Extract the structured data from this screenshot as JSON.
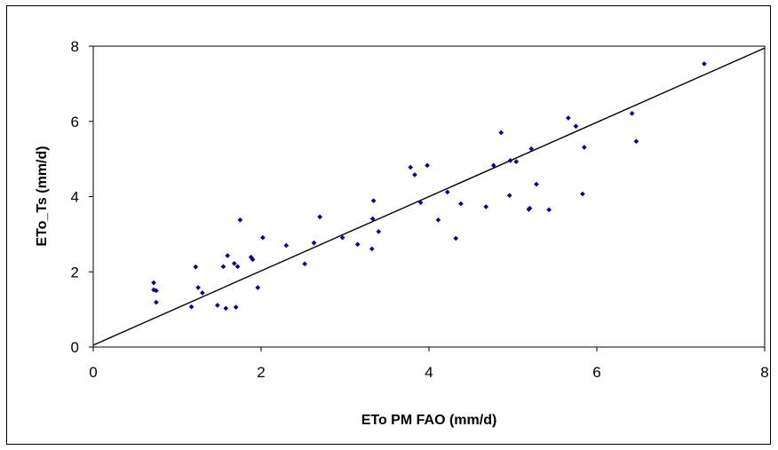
{
  "chart_data": {
    "type": "scatter",
    "title": "",
    "xlabel": "ETo PM FAO (mm/d)",
    "ylabel": "ETo_Ts (mm/d)",
    "xlim": [
      0,
      8
    ],
    "ylim": [
      0,
      8
    ],
    "x_ticks": [
      "0",
      "2",
      "4",
      "6",
      "8"
    ],
    "y_ticks": [
      "0",
      "2",
      "4",
      "6",
      "8"
    ],
    "grid": false,
    "legend": "none",
    "series": [
      {
        "marker_color": "#000080",
        "points": [
          [
            0.72,
            1.71
          ],
          [
            0.72,
            1.52
          ],
          [
            0.75,
            1.5
          ],
          [
            0.75,
            1.19
          ],
          [
            1.17,
            1.07
          ],
          [
            1.22,
            2.13
          ],
          [
            1.25,
            1.58
          ],
          [
            1.3,
            1.44
          ],
          [
            1.48,
            1.11
          ],
          [
            1.55,
            2.14
          ],
          [
            1.58,
            1.03
          ],
          [
            1.6,
            2.43
          ],
          [
            1.68,
            2.22
          ],
          [
            1.7,
            1.06
          ],
          [
            1.72,
            2.14
          ],
          [
            1.75,
            3.38
          ],
          [
            1.88,
            2.39
          ],
          [
            1.9,
            2.33
          ],
          [
            1.96,
            1.58
          ],
          [
            2.02,
            2.91
          ],
          [
            2.3,
            2.7
          ],
          [
            2.52,
            2.21
          ],
          [
            2.63,
            2.77
          ],
          [
            2.7,
            3.46
          ],
          [
            2.97,
            2.91
          ],
          [
            3.15,
            2.73
          ],
          [
            3.32,
            2.61
          ],
          [
            3.33,
            3.41
          ],
          [
            3.34,
            3.89
          ],
          [
            3.4,
            3.07
          ],
          [
            3.78,
            4.78
          ],
          [
            3.83,
            4.58
          ],
          [
            3.9,
            3.84
          ],
          [
            3.98,
            4.83
          ],
          [
            4.11,
            3.38
          ],
          [
            4.22,
            4.12
          ],
          [
            4.32,
            2.89
          ],
          [
            4.38,
            3.81
          ],
          [
            4.68,
            3.73
          ],
          [
            4.77,
            4.83
          ],
          [
            4.86,
            5.7
          ],
          [
            4.96,
            4.03
          ],
          [
            4.97,
            4.96
          ],
          [
            5.04,
            4.93
          ],
          [
            5.19,
            3.66
          ],
          [
            5.2,
            3.69
          ],
          [
            5.22,
            5.27
          ],
          [
            5.28,
            4.33
          ],
          [
            5.43,
            3.65
          ],
          [
            5.66,
            6.09
          ],
          [
            5.75,
            5.87
          ],
          [
            5.83,
            4.07
          ],
          [
            5.85,
            5.31
          ],
          [
            6.42,
            6.21
          ],
          [
            6.47,
            5.47
          ],
          [
            7.28,
            7.53
          ]
        ]
      }
    ],
    "trendline": {
      "type": "linear",
      "x": [
        0,
        8
      ],
      "y": [
        0.05,
        7.95
      ],
      "color": "#000000"
    }
  }
}
